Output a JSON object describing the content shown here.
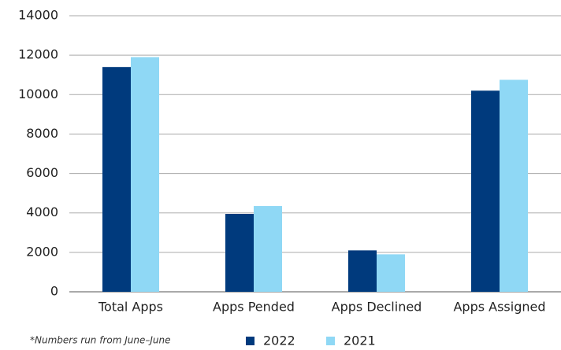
{
  "chart_data": {
    "type": "bar",
    "categories": [
      "Total Apps",
      "Apps Pended",
      "Apps Declined",
      "Apps Assigned"
    ],
    "series": [
      {
        "name": "2022",
        "color": "#003a7d",
        "values": [
          11400,
          3950,
          2100,
          10200
        ]
      },
      {
        "name": "2021",
        "color": "#8fd8f5",
        "values": [
          11900,
          4350,
          1900,
          10750
        ]
      }
    ],
    "ylim": [
      0,
      14000
    ],
    "yticks": [
      0,
      2000,
      4000,
      6000,
      8000,
      10000,
      12000,
      14000
    ],
    "grid": true,
    "legend": "bottom",
    "note": "*Numbers run from June–June"
  }
}
